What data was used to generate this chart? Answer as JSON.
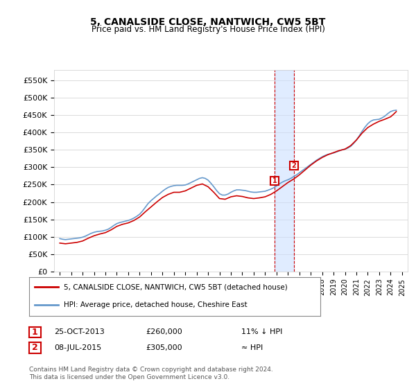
{
  "title": "5, CANALSIDE CLOSE, NANTWICH, CW5 5BT",
  "subtitle": "Price paid vs. HM Land Registry's House Price Index (HPI)",
  "ylabel_ticks": [
    "£0",
    "£50K",
    "£100K",
    "£150K",
    "£200K",
    "£250K",
    "£300K",
    "£350K",
    "£400K",
    "£450K",
    "£500K",
    "£550K"
  ],
  "ytick_values": [
    0,
    50000,
    100000,
    150000,
    200000,
    250000,
    300000,
    350000,
    400000,
    450000,
    500000,
    550000
  ],
  "ylim": [
    0,
    580000
  ],
  "xlim_start": 1994.5,
  "xlim_end": 2025.5,
  "marker1_x": 2013.82,
  "marker1_y": 260000,
  "marker2_x": 2015.52,
  "marker2_y": 305000,
  "marker1_label": "1",
  "marker2_label": "2",
  "shade_xmin": 2013.82,
  "shade_xmax": 2015.52,
  "legend_line1": "5, CANALSIDE CLOSE, NANTWICH, CW5 5BT (detached house)",
  "legend_line2": "HPI: Average price, detached house, Cheshire East",
  "table_row1": [
    "1",
    "25-OCT-2013",
    "£260,000",
    "11% ↓ HPI"
  ],
  "table_row2": [
    "2",
    "08-JUL-2015",
    "£305,000",
    "≈ HPI"
  ],
  "footer": "Contains HM Land Registry data © Crown copyright and database right 2024.\nThis data is licensed under the Open Government Licence v3.0.",
  "line_color_red": "#cc0000",
  "line_color_blue": "#6699cc",
  "shade_color": "#cce0ff",
  "grid_color": "#cccccc",
  "background_color": "#ffffff",
  "hpi_data": {
    "years": [
      1995,
      1995.25,
      1995.5,
      1995.75,
      1996,
      1996.25,
      1996.5,
      1996.75,
      1997,
      1997.25,
      1997.5,
      1997.75,
      1998,
      1998.25,
      1998.5,
      1998.75,
      1999,
      1999.25,
      1999.5,
      1999.75,
      2000,
      2000.25,
      2000.5,
      2000.75,
      2001,
      2001.25,
      2001.5,
      2001.75,
      2002,
      2002.25,
      2002.5,
      2002.75,
      2003,
      2003.25,
      2003.5,
      2003.75,
      2004,
      2004.25,
      2004.5,
      2004.75,
      2005,
      2005.25,
      2005.5,
      2005.75,
      2006,
      2006.25,
      2006.5,
      2006.75,
      2007,
      2007.25,
      2007.5,
      2007.75,
      2008,
      2008.25,
      2008.5,
      2008.75,
      2009,
      2009.25,
      2009.5,
      2009.75,
      2010,
      2010.25,
      2010.5,
      2010.75,
      2011,
      2011.25,
      2011.5,
      2011.75,
      2012,
      2012.25,
      2012.5,
      2012.75,
      2013,
      2013.25,
      2013.5,
      2013.75,
      2014,
      2014.25,
      2014.5,
      2014.75,
      2015,
      2015.25,
      2015.5,
      2015.75,
      2016,
      2016.25,
      2016.5,
      2016.75,
      2017,
      2017.25,
      2017.5,
      2017.75,
      2018,
      2018.25,
      2018.5,
      2018.75,
      2019,
      2019.25,
      2019.5,
      2019.75,
      2020,
      2020.25,
      2020.5,
      2020.75,
      2021,
      2021.25,
      2021.5,
      2021.75,
      2022,
      2022.25,
      2022.5,
      2022.75,
      2023,
      2023.25,
      2023.5,
      2023.75,
      2024,
      2024.25,
      2024.5
    ],
    "values": [
      95000,
      93000,
      92000,
      93000,
      94000,
      95000,
      96000,
      97000,
      99000,
      102000,
      106000,
      110000,
      113000,
      115000,
      116000,
      117000,
      119000,
      122000,
      127000,
      133000,
      138000,
      141000,
      143000,
      145000,
      147000,
      150000,
      154000,
      159000,
      165000,
      174000,
      185000,
      196000,
      204000,
      211000,
      218000,
      224000,
      231000,
      237000,
      242000,
      245000,
      247000,
      248000,
      248000,
      248000,
      249000,
      252000,
      256000,
      260000,
      264000,
      268000,
      270000,
      268000,
      263000,
      254000,
      244000,
      233000,
      224000,
      220000,
      220000,
      223000,
      228000,
      232000,
      235000,
      235000,
      234000,
      233000,
      231000,
      229000,
      228000,
      228000,
      229000,
      230000,
      231000,
      234000,
      237000,
      241000,
      246000,
      252000,
      257000,
      261000,
      264000,
      268000,
      273000,
      278000,
      284000,
      290000,
      296000,
      302000,
      308000,
      314000,
      320000,
      325000,
      330000,
      334000,
      337000,
      339000,
      341000,
      344000,
      347000,
      350000,
      352000,
      355000,
      360000,
      368000,
      378000,
      390000,
      403000,
      415000,
      425000,
      432000,
      436000,
      437000,
      438000,
      442000,
      447000,
      454000,
      460000,
      463000,
      464000
    ]
  },
  "price_data": {
    "years": [
      1995,
      1995.5,
      1996,
      1996.5,
      1997,
      1997.5,
      1998,
      1998.5,
      1999,
      1999.5,
      2000,
      2000.5,
      2001,
      2001.5,
      2002,
      2002.5,
      2003,
      2003.5,
      2004,
      2004.5,
      2005,
      2005.5,
      2006,
      2006.5,
      2007,
      2007.5,
      2008,
      2008.5,
      2009,
      2009.5,
      2010,
      2010.5,
      2011,
      2011.5,
      2012,
      2012.5,
      2013,
      2013.5,
      2014,
      2014.5,
      2015,
      2015.5,
      2016,
      2016.5,
      2017,
      2017.5,
      2018,
      2018.5,
      2019,
      2019.5,
      2020,
      2020.5,
      2021,
      2021.5,
      2022,
      2022.5,
      2023,
      2023.5,
      2024,
      2024.25,
      2024.5
    ],
    "values": [
      82000,
      80000,
      82000,
      84000,
      88000,
      96000,
      103000,
      108000,
      112000,
      120000,
      130000,
      136000,
      140000,
      147000,
      157000,
      172000,
      186000,
      200000,
      213000,
      222000,
      228000,
      228000,
      232000,
      240000,
      248000,
      252000,
      244000,
      228000,
      210000,
      208000,
      215000,
      218000,
      216000,
      212000,
      210000,
      212000,
      215000,
      222000,
      232000,
      244000,
      256000,
      266000,
      278000,
      292000,
      306000,
      318000,
      328000,
      336000,
      342000,
      348000,
      352000,
      362000,
      378000,
      398000,
      414000,
      424000,
      432000,
      438000,
      445000,
      452000,
      460000
    ]
  },
  "xtick_years": [
    1995,
    1996,
    1997,
    1998,
    1999,
    2000,
    2001,
    2002,
    2003,
    2004,
    2005,
    2006,
    2007,
    2008,
    2009,
    2010,
    2011,
    2012,
    2013,
    2014,
    2015,
    2016,
    2017,
    2018,
    2019,
    2020,
    2021,
    2022,
    2023,
    2024,
    2025
  ]
}
